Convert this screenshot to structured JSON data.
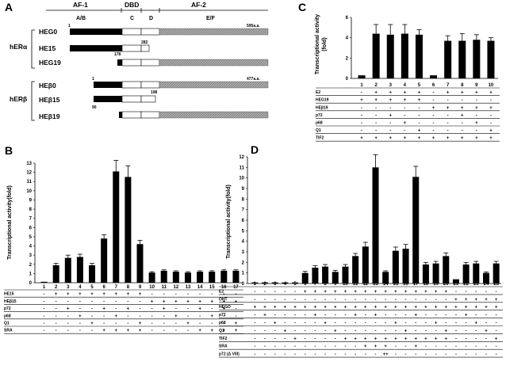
{
  "panels": {
    "A": {
      "label": "A",
      "domain_labels": [
        "AF-1",
        "DBD",
        "AF-2"
      ],
      "region_labels": [
        "A/B",
        "C",
        "D",
        "E/F"
      ],
      "group_alpha": "hERα",
      "group_beta": "hERβ",
      "constructs": [
        {
          "name": "HEG0",
          "start_label": "1",
          "end_label": "595a.a."
        },
        {
          "name": "HE15",
          "end_label": "282"
        },
        {
          "name": "HEG19",
          "start_label": "178"
        },
        {
          "name": "HEβ0",
          "start_label": "1",
          "end_label": "477a.a."
        },
        {
          "name": "HEβ15",
          "end_label": "198"
        },
        {
          "name": "HEβ19",
          "start_label": "90"
        }
      ]
    },
    "B": {
      "label": "B"
    },
    "C": {
      "label": "C"
    },
    "D": {
      "label": "D"
    }
  },
  "chart_data": [
    {
      "panel": "C",
      "type": "bar",
      "ylabel": "Transcriptional activity\n(fold)",
      "ylim": [
        0,
        6
      ],
      "yticks": [
        0,
        2,
        4,
        6
      ],
      "categories": [
        "1",
        "2",
        "3",
        "4",
        "5",
        "6",
        "7",
        "8",
        "9",
        "10"
      ],
      "values": [
        0.3,
        4.4,
        4.3,
        4.4,
        4.3,
        0.3,
        3.7,
        3.7,
        3.8,
        3.7
      ],
      "errors": [
        0.05,
        0.9,
        1.0,
        0.9,
        0.5,
        0.05,
        0.5,
        0.7,
        0.5,
        0.3
      ],
      "rows": [
        {
          "label": "E2",
          "cells": [
            "-",
            "+",
            "+",
            "+",
            "+",
            "-",
            "+",
            "+",
            "+",
            "+"
          ]
        },
        {
          "label": "HEG19",
          "cells": [
            "+",
            "+",
            "+",
            "+",
            "+",
            "-",
            "-",
            "-",
            "-",
            "-"
          ]
        },
        {
          "label": "HEβ19",
          "cells": [
            "-",
            "-",
            "-",
            "-",
            "-",
            "+",
            "+",
            "+",
            "+",
            "+"
          ]
        },
        {
          "label": "p72",
          "cells": [
            "-",
            "-",
            "+",
            "-",
            "-",
            "-",
            "-",
            "+",
            "-",
            "-"
          ]
        },
        {
          "label": "p68",
          "cells": [
            "-",
            "-",
            "-",
            "+",
            "-",
            "-",
            "-",
            "-",
            "+",
            "-"
          ]
        },
        {
          "label": "Q1",
          "cells": [
            "-",
            "-",
            "-",
            "-",
            "+",
            "-",
            "-",
            "-",
            "-",
            "+"
          ]
        },
        {
          "label": "TIF2",
          "cells": [
            "+",
            "+",
            "+",
            "+",
            "+",
            "+",
            "+",
            "+",
            "+",
            "+"
          ]
        }
      ]
    },
    {
      "panel": "B",
      "type": "bar",
      "ylabel": "Transcriptional activity(fold)",
      "ylim": [
        0,
        13
      ],
      "yticks": [
        0,
        1,
        2,
        3,
        4,
        5,
        6,
        7,
        8,
        9,
        10,
        11,
        12,
        13
      ],
      "categories": [
        "1",
        "2",
        "3",
        "4",
        "5",
        "6",
        "7",
        "8",
        "9",
        "10",
        "11",
        "12",
        "13",
        "14",
        "15",
        "16",
        "17"
      ],
      "values": [
        0.1,
        1.9,
        2.7,
        2.8,
        1.9,
        4.8,
        12.1,
        11.5,
        4.2,
        1.1,
        1.3,
        1.2,
        1.1,
        1.2,
        1.2,
        1.3,
        1.3
      ],
      "errors": [
        0.05,
        0.2,
        0.3,
        0.3,
        0.2,
        0.4,
        1.2,
        1.2,
        0.4,
        0.1,
        0.1,
        0.1,
        0.1,
        0.1,
        0.1,
        0.1,
        0.1
      ],
      "rows": [
        {
          "label": "HE15",
          "cells": [
            "-",
            "+",
            "+",
            "+",
            "+",
            "+",
            "+",
            "+",
            "+",
            "-",
            "-",
            "-",
            "-",
            "-",
            "-",
            "-",
            "-"
          ]
        },
        {
          "label": "HEβ15",
          "cells": [
            "-",
            "-",
            "-",
            "-",
            "-",
            "-",
            "-",
            "-",
            "-",
            "+",
            "+",
            "+",
            "+",
            "+",
            "+",
            "+",
            "+"
          ]
        },
        {
          "label": "p72",
          "cells": [
            "-",
            "-",
            "+",
            "-",
            "-",
            "+",
            "-",
            "+",
            "-",
            "-",
            "+",
            "-",
            "-",
            "+",
            "-",
            "+",
            "-"
          ]
        },
        {
          "label": "p68",
          "cells": [
            "-",
            "-",
            "-",
            "+",
            "-",
            "-",
            "+",
            "-",
            "-",
            "-",
            "-",
            "+",
            "-",
            "-",
            "+",
            "-",
            "-"
          ]
        },
        {
          "label": "Q1",
          "cells": [
            "-",
            "-",
            "-",
            "-",
            "+",
            "-",
            "-",
            "-",
            "+",
            "-",
            "-",
            "-",
            "+",
            "-",
            "-",
            "-",
            "+"
          ]
        },
        {
          "label": "SRA",
          "cells": [
            "-",
            "-",
            "-",
            "-",
            "-",
            "+",
            "+",
            "+",
            "+",
            "-",
            "-",
            "-",
            "-",
            "+",
            "+",
            "+",
            "+"
          ]
        }
      ]
    },
    {
      "panel": "D",
      "type": "bar",
      "ylabel": "Transcriptional activity(fold)",
      "ylim": [
        0,
        12
      ],
      "yticks": [
        0,
        1,
        2,
        3,
        4,
        5,
        6,
        7,
        8,
        9,
        10,
        11,
        12
      ],
      "categories": [
        "1",
        "2",
        "3",
        "4",
        "5",
        "6",
        "7",
        "8",
        "9",
        "10",
        "11",
        "12",
        "13",
        "14",
        "15",
        "16",
        "17",
        "18",
        "19",
        "20",
        "21",
        "22",
        "23",
        "24",
        "25"
      ],
      "values": [
        0.1,
        0.1,
        0.1,
        0.1,
        0.1,
        1.0,
        1.5,
        1.6,
        1.1,
        1.6,
        2.6,
        3.5,
        11.0,
        1.1,
        3.1,
        3.3,
        10.1,
        1.8,
        1.9,
        2.6,
        0.4,
        1.8,
        1.9,
        1.0,
        1.9
      ],
      "errors": [
        0.03,
        0.03,
        0.03,
        0.03,
        0.03,
        0.15,
        0.2,
        0.2,
        0.15,
        0.2,
        0.25,
        0.4,
        1.2,
        0.1,
        0.35,
        0.4,
        1.0,
        0.2,
        0.2,
        0.3,
        0.05,
        0.2,
        0.2,
        0.1,
        0.2
      ],
      "rows": [
        {
          "label": "E2",
          "cells": [
            "-",
            "-",
            "-",
            "-",
            "-",
            "+",
            "+",
            "+",
            "+",
            "+",
            "+",
            "+",
            "+",
            "+",
            "+",
            "+",
            "+",
            "+",
            "+",
            "+",
            "-",
            "-",
            "-",
            "-",
            "-"
          ]
        },
        {
          "label": "OHT",
          "cells": [
            "-",
            "-",
            "-",
            "-",
            "-",
            "-",
            "-",
            "-",
            "-",
            "-",
            "-",
            "-",
            "-",
            "-",
            "-",
            "-",
            "-",
            "-",
            "-",
            "-",
            "+",
            "+",
            "+",
            "+",
            "+"
          ]
        },
        {
          "label": "HEGO",
          "cells": [
            "+",
            "+",
            "+",
            "+",
            "+",
            "+",
            "+",
            "+",
            "+",
            "+",
            "+",
            "+",
            "+",
            "+",
            "+",
            "+",
            "+",
            "+",
            "+",
            "+",
            "+",
            "+",
            "+",
            "+",
            "+"
          ]
        },
        {
          "label": "p72",
          "cells": [
            "-",
            "+",
            "-",
            "-",
            "-",
            "-",
            "+",
            "-",
            "-",
            "-",
            "+",
            "-",
            "+",
            "-",
            "-",
            "-",
            "+",
            "-",
            "-",
            "-",
            "-",
            "+",
            "-",
            "-",
            "-"
          ]
        },
        {
          "label": "p68",
          "cells": [
            "-",
            "-",
            "+",
            "-",
            "-",
            "-",
            "-",
            "+",
            "-",
            "-",
            "-",
            "-",
            "-",
            "-",
            "+",
            "-",
            "-",
            "-",
            "+",
            "-",
            "-",
            "-",
            "+",
            "-",
            "-"
          ]
        },
        {
          "label": "Q1",
          "cells": [
            "-",
            "-",
            "-",
            "+",
            "-",
            "-",
            "-",
            "-",
            "+",
            "-",
            "-",
            "-",
            "-",
            "-",
            "-",
            "+",
            "-",
            "-",
            "-",
            "+",
            "-",
            "-",
            "-",
            "+",
            "-"
          ]
        },
        {
          "label": "TIF2",
          "cells": [
            "-",
            "-",
            "-",
            "-",
            "+",
            "-",
            "-",
            "-",
            "-",
            "+",
            "+",
            "+",
            "+",
            "+",
            "+",
            "+",
            "+",
            "+",
            "+",
            "+",
            "-",
            "-",
            "-",
            "-",
            "+"
          ]
        },
        {
          "label": "SRA",
          "cells": [
            "-",
            "-",
            "-",
            "-",
            "-",
            "-",
            "-",
            "-",
            "-",
            "-",
            "-",
            "+",
            "+",
            "+",
            "-",
            "-",
            "+",
            "-",
            "-",
            "-",
            "-",
            "-",
            "-",
            "-",
            "-"
          ]
        },
        {
          "label": "p72 (Δ VIII)",
          "cells": [
            "-",
            "-",
            "-",
            "-",
            "-",
            "-",
            "-",
            "-",
            "-",
            "-",
            "-",
            "-",
            "-",
            "++",
            "-",
            "-",
            "-",
            "-",
            "-",
            "-",
            "-",
            "-",
            "-",
            "-",
            "-"
          ]
        }
      ]
    }
  ]
}
